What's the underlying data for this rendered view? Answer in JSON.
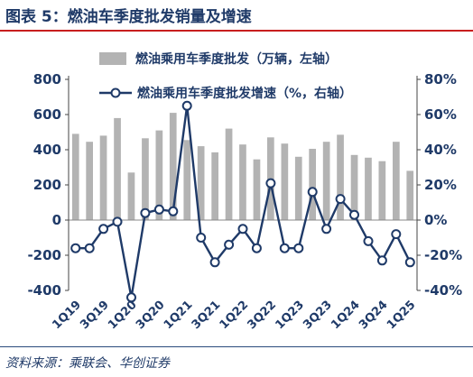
{
  "header": {
    "title": "图表 5：燃油车季度批发销量及增速"
  },
  "footer": {
    "source": "资料来源：乘联会、华创证券"
  },
  "colors": {
    "bar": "#b3b3b3",
    "line": "#1f3a68",
    "marker_fill": "#ffffff",
    "text": "#1f3a68",
    "title_rule": "#c81e1e"
  },
  "chart_data": {
    "type": "bar",
    "combo": "bar+line",
    "legend_position": "top",
    "grid": false,
    "categories": [
      "1Q19",
      "2Q19",
      "3Q19",
      "4Q19",
      "1Q20",
      "2Q20",
      "3Q20",
      "4Q20",
      "1Q21",
      "2Q21",
      "3Q21",
      "4Q21",
      "1Q22",
      "2Q22",
      "3Q22",
      "4Q22",
      "1Q23",
      "2Q23",
      "3Q23",
      "4Q23",
      "1Q24",
      "2Q24",
      "3Q24",
      "4Q24",
      "1Q25"
    ],
    "x_tick_labels": [
      "1Q19",
      "3Q19",
      "1Q20",
      "3Q20",
      "1Q21",
      "3Q21",
      "1Q22",
      "3Q22",
      "1Q23",
      "3Q23",
      "1Q24",
      "3Q24",
      "1Q25"
    ],
    "series": [
      {
        "name": "燃油乘用车季度批发（万辆，左轴）",
        "type": "bar",
        "axis": "left",
        "values": [
          490,
          445,
          480,
          580,
          270,
          465,
          510,
          610,
          455,
          420,
          385,
          520,
          430,
          345,
          470,
          435,
          360,
          405,
          445,
          485,
          370,
          355,
          335,
          445,
          280
        ]
      },
      {
        "name": "燃油乘用车季度批发增速（%，右轴）",
        "type": "line",
        "axis": "right",
        "values": [
          -16,
          -16,
          -5,
          -1,
          -44,
          4,
          6,
          5,
          65,
          -10,
          -24,
          -14,
          -5,
          -16,
          21,
          -16,
          -16,
          16,
          -5,
          12,
          3,
          -12,
          -23,
          -8,
          -24
        ]
      }
    ],
    "y_left": {
      "min": -400,
      "max": 800,
      "ticks": [
        "-400",
        "-200",
        "0",
        "200",
        "400",
        "600",
        "800"
      ]
    },
    "y_right": {
      "min": -40,
      "max": 80,
      "ticks": [
        "-40%",
        "-20%",
        "0%",
        "20%",
        "40%",
        "60%",
        "80%"
      ]
    }
  }
}
